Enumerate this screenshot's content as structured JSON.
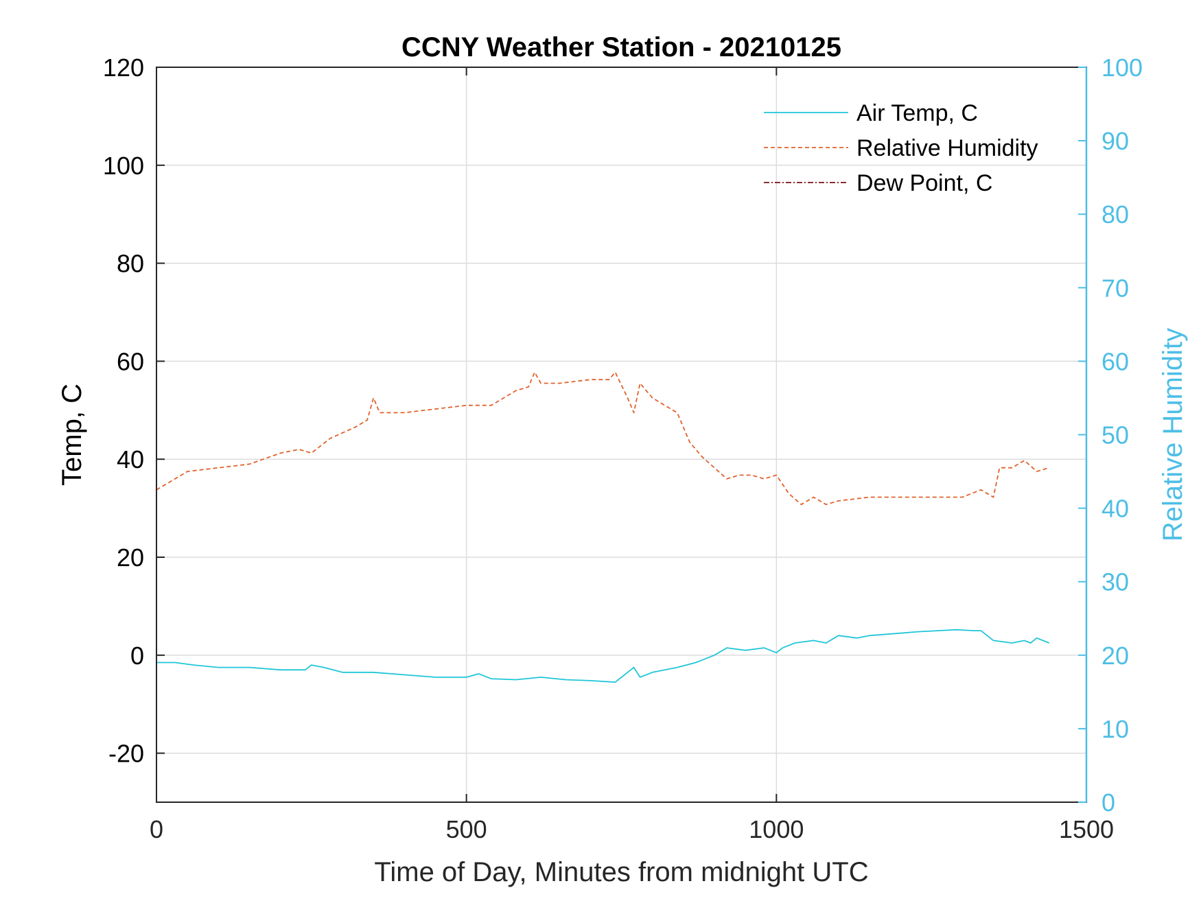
{
  "chart_data": {
    "type": "line",
    "title": "CCNY Weather Station - 20210125",
    "xlabel": "Time of Day, Minutes from midnight UTC",
    "ylabel_left": "Temp, C",
    "ylabel_right": "Relative Humidity",
    "xlim": [
      0,
      1500
    ],
    "ylim_left": [
      -30,
      120
    ],
    "ylim_right": [
      0,
      100
    ],
    "x_ticks": [
      "0",
      "500",
      "1000",
      "1500"
    ],
    "y_ticks_left": [
      "-20",
      "0",
      "20",
      "40",
      "60",
      "80",
      "100",
      "120"
    ],
    "y_ticks_right": [
      "0",
      "10",
      "20",
      "30",
      "40",
      "50",
      "60",
      "70",
      "80",
      "90",
      "100"
    ],
    "grid": true,
    "legend_position": "top-right",
    "colors": {
      "air_temp": "#1fc6d8",
      "relative_humidity": "#e0622c",
      "dew_point": "#7a0f1a",
      "right_axis": "#4dbee6",
      "grid": "#dcdcdc"
    },
    "series": [
      {
        "name": "Air Temp, C",
        "axis": "left",
        "style": "solid",
        "x": [
          0,
          30,
          60,
          100,
          150,
          200,
          240,
          250,
          270,
          300,
          350,
          400,
          450,
          500,
          520,
          540,
          580,
          620,
          660,
          700,
          740,
          760,
          770,
          780,
          800,
          840,
          870,
          900,
          920,
          950,
          980,
          1000,
          1010,
          1030,
          1060,
          1080,
          1100,
          1130,
          1150,
          1170,
          1200,
          1230,
          1260,
          1290,
          1320,
          1330,
          1350,
          1380,
          1400,
          1410,
          1420,
          1440
        ],
        "y": [
          -1.5,
          -1.5,
          -2.0,
          -2.5,
          -2.5,
          -3.0,
          -3.0,
          -2.0,
          -2.5,
          -3.5,
          -3.5,
          -4.0,
          -4.5,
          -4.5,
          -3.8,
          -4.8,
          -5.0,
          -4.5,
          -5.0,
          -5.2,
          -5.5,
          -3.5,
          -2.5,
          -4.5,
          -3.5,
          -2.5,
          -1.5,
          0.0,
          1.5,
          1.0,
          1.5,
          0.5,
          1.5,
          2.5,
          3.0,
          2.5,
          4.0,
          3.5,
          4.0,
          4.2,
          4.5,
          4.8,
          5.0,
          5.2,
          5.0,
          5.0,
          3.0,
          2.5,
          3.0,
          2.5,
          3.5,
          2.5
        ]
      },
      {
        "name": "Relative Humidity",
        "axis": "right",
        "style": "dashed",
        "x": [
          0,
          20,
          50,
          100,
          150,
          200,
          230,
          250,
          280,
          320,
          340,
          350,
          360,
          400,
          450,
          500,
          540,
          580,
          600,
          610,
          620,
          650,
          700,
          730,
          740,
          760,
          770,
          780,
          800,
          820,
          840,
          860,
          880,
          900,
          920,
          940,
          960,
          980,
          1000,
          1020,
          1040,
          1060,
          1080,
          1100,
          1150,
          1200,
          1250,
          1300,
          1330,
          1350,
          1360,
          1380,
          1400,
          1420,
          1440
        ],
        "y": [
          42.5,
          43.5,
          45.0,
          45.5,
          46.0,
          47.5,
          48.0,
          47.5,
          49.5,
          51.0,
          52.0,
          55.0,
          53.0,
          53.0,
          53.5,
          54.0,
          54.0,
          56.0,
          56.5,
          58.5,
          57.0,
          57.0,
          57.5,
          57.5,
          58.5,
          55.0,
          53.0,
          57.0,
          55.0,
          54.0,
          53.0,
          49.0,
          47.0,
          45.5,
          44.0,
          44.5,
          44.5,
          44.0,
          44.5,
          42.0,
          40.5,
          41.5,
          40.5,
          41.0,
          41.5,
          41.5,
          41.5,
          41.5,
          42.5,
          41.5,
          45.5,
          45.5,
          46.5,
          45.0,
          45.5
        ]
      },
      {
        "name": "Dew Point, C",
        "axis": "left",
        "style": "dash-dot",
        "x": [],
        "y": []
      }
    ]
  }
}
